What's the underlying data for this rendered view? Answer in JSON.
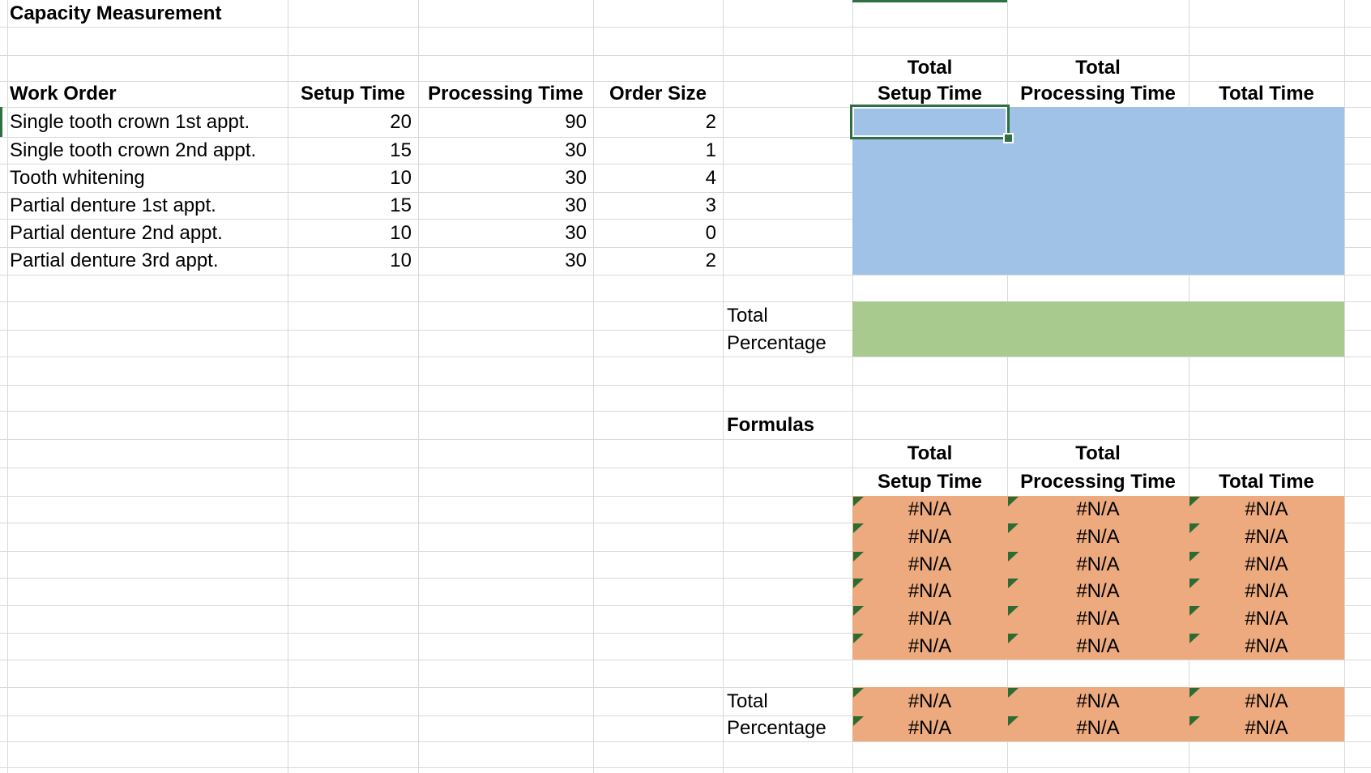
{
  "title": "Capacity Measurement",
  "work_orders": {
    "headers": {
      "work_order": "Work Order",
      "setup_time": "Setup Time",
      "processing_time": "Processing Time",
      "order_size": "Order Size"
    },
    "rows": [
      {
        "name": "Single tooth crown 1st appt.",
        "setup": "20",
        "processing": "90",
        "order": "2"
      },
      {
        "name": "Single tooth crown 2nd appt.",
        "setup": "15",
        "processing": "30",
        "order": "1"
      },
      {
        "name": "Tooth whitening",
        "setup": "10",
        "processing": "30",
        "order": "4"
      },
      {
        "name": "Partial denture 1st appt.",
        "setup": "15",
        "processing": "30",
        "order": "3"
      },
      {
        "name": "Partial denture 2nd appt.",
        "setup": "10",
        "processing": "30",
        "order": "0"
      },
      {
        "name": "Partial denture 3rd appt.",
        "setup": "10",
        "processing": "30",
        "order": "2"
      }
    ]
  },
  "totals_header": {
    "total": "Total",
    "setup": "Setup Time",
    "processing": "Processing Time",
    "total_time": "Total Time"
  },
  "summary": {
    "total": "Total",
    "percentage": "Percentage"
  },
  "formulas_section": {
    "label": "Formulas",
    "na_value": "#N/A"
  },
  "colors": {
    "blue_fill": "#A0C2E7",
    "green_fill": "#A9CA8E",
    "orange_fill": "#ECAA7E",
    "selection_green": "#2E6F44",
    "error_indicator_green": "#2E6B32",
    "gridline": "#D9D9D9"
  }
}
